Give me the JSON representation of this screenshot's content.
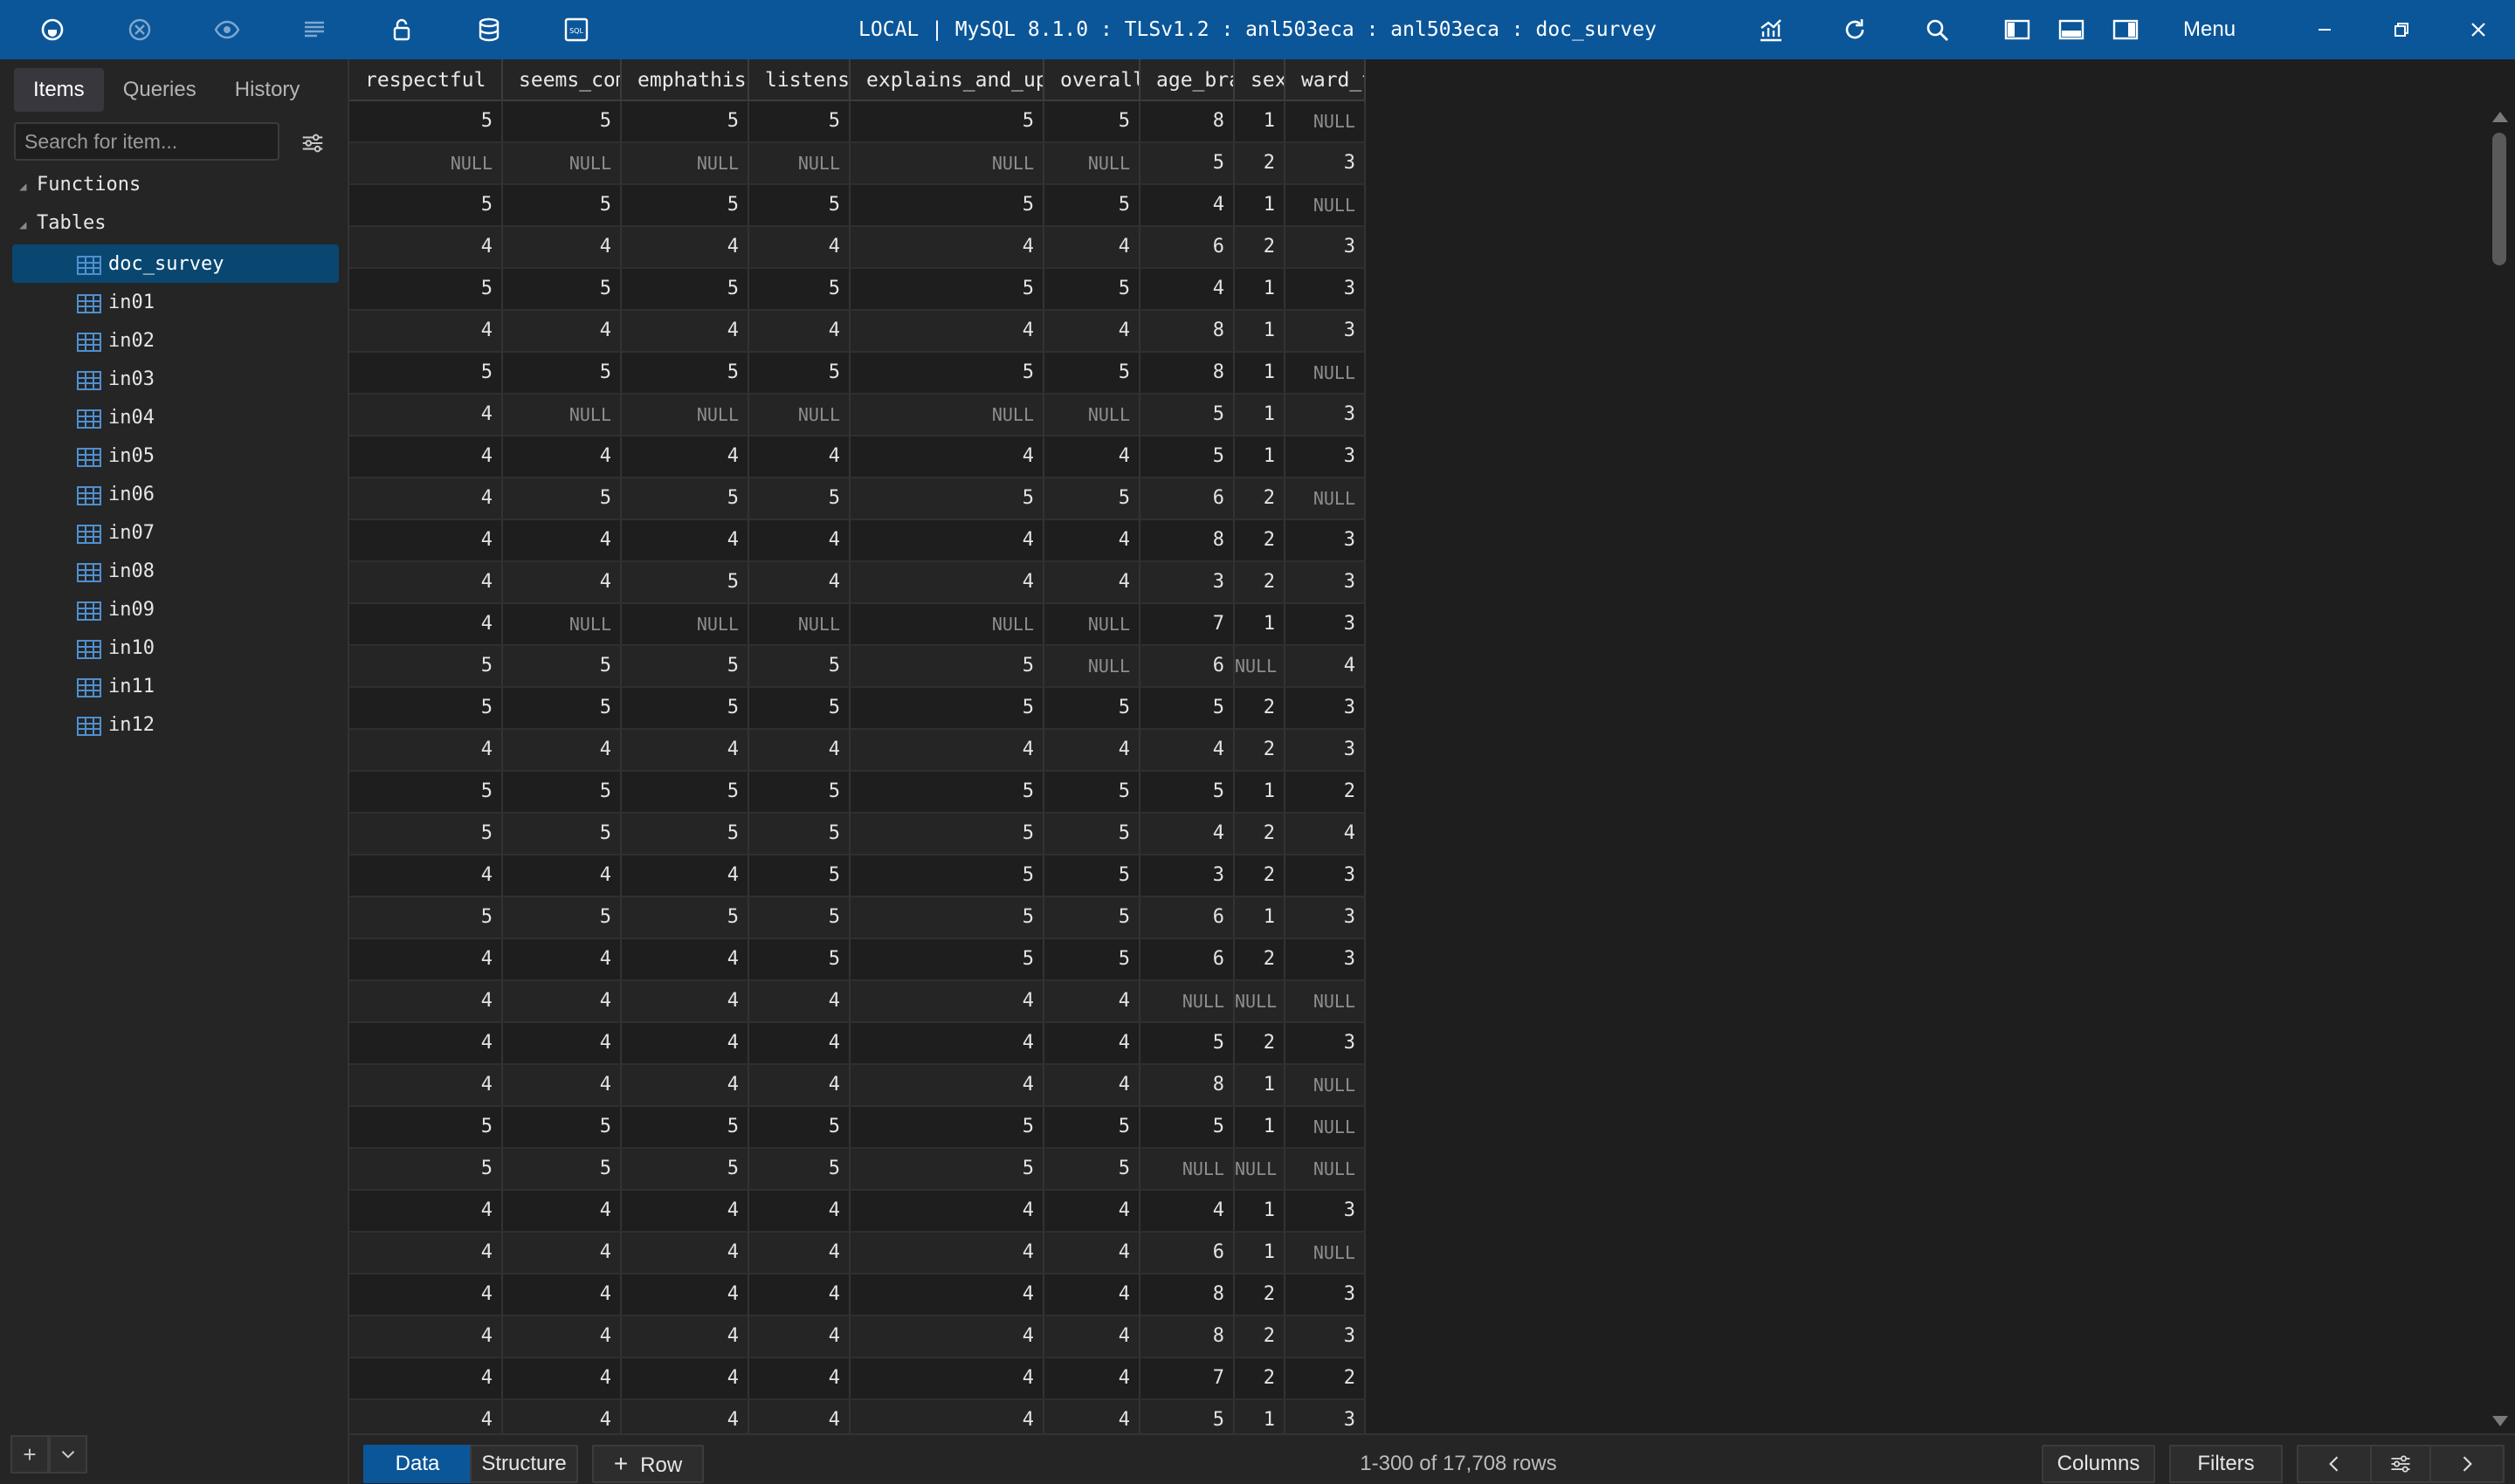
{
  "window": {
    "title": "LOCAL | MySQL 8.1.0 : TLSv1.2 : anl503eca : anl503eca : doc_survey",
    "menu_label": "Menu"
  },
  "toolbar": {
    "left_icons": [
      "connection-icon",
      "close-connection-icon",
      "preview-icon",
      "list-icon",
      "lock-icon",
      "database-icon",
      "sql-editor-icon"
    ],
    "right_icons": [
      "metrics-icon",
      "refresh-icon",
      "search-icon",
      "left-panel-icon",
      "bottom-panel-icon",
      "right-panel-icon"
    ],
    "window_controls": [
      "minimize-icon",
      "restore-icon",
      "close-icon"
    ]
  },
  "sidebar": {
    "tabs": [
      {
        "label": "Items",
        "active": true
      },
      {
        "label": "Queries",
        "active": false
      },
      {
        "label": "History",
        "active": false
      }
    ],
    "search_placeholder": "Search for item...",
    "groups": {
      "functions": "Functions",
      "tables": "Tables"
    },
    "tables": [
      "doc_survey",
      "in01",
      "in02",
      "in03",
      "in04",
      "in05",
      "in06",
      "in07",
      "in08",
      "in09",
      "in10",
      "in11",
      "in12"
    ],
    "selected_table": "doc_survey"
  },
  "grid": {
    "columns": [
      "respectful",
      "seems_competent",
      "emphathises_well",
      "listens_well",
      "explains_and_updates_well",
      "overall_sat",
      "age_bracket",
      "sex",
      "ward_type"
    ],
    "rows": [
      [
        "5",
        "5",
        "5",
        "5",
        "5",
        "5",
        "8",
        "1",
        "NULL"
      ],
      [
        "NULL",
        "NULL",
        "NULL",
        "NULL",
        "NULL",
        "NULL",
        "5",
        "2",
        "3"
      ],
      [
        "5",
        "5",
        "5",
        "5",
        "5",
        "5",
        "4",
        "1",
        "NULL"
      ],
      [
        "4",
        "4",
        "4",
        "4",
        "4",
        "4",
        "6",
        "2",
        "3"
      ],
      [
        "5",
        "5",
        "5",
        "5",
        "5",
        "5",
        "4",
        "1",
        "3"
      ],
      [
        "4",
        "4",
        "4",
        "4",
        "4",
        "4",
        "8",
        "1",
        "3"
      ],
      [
        "5",
        "5",
        "5",
        "5",
        "5",
        "5",
        "8",
        "1",
        "NULL"
      ],
      [
        "4",
        "NULL",
        "NULL",
        "NULL",
        "NULL",
        "NULL",
        "5",
        "1",
        "3"
      ],
      [
        "4",
        "4",
        "4",
        "4",
        "4",
        "4",
        "5",
        "1",
        "3"
      ],
      [
        "4",
        "5",
        "5",
        "5",
        "5",
        "5",
        "6",
        "2",
        "NULL"
      ],
      [
        "4",
        "4",
        "4",
        "4",
        "4",
        "4",
        "8",
        "2",
        "3"
      ],
      [
        "4",
        "4",
        "5",
        "4",
        "4",
        "4",
        "3",
        "2",
        "3"
      ],
      [
        "4",
        "NULL",
        "NULL",
        "NULL",
        "NULL",
        "NULL",
        "7",
        "1",
        "3"
      ],
      [
        "5",
        "5",
        "5",
        "5",
        "5",
        "NULL",
        "6",
        "NULL",
        "4"
      ],
      [
        "5",
        "5",
        "5",
        "5",
        "5",
        "5",
        "5",
        "2",
        "3"
      ],
      [
        "4",
        "4",
        "4",
        "4",
        "4",
        "4",
        "4",
        "2",
        "3"
      ],
      [
        "5",
        "5",
        "5",
        "5",
        "5",
        "5",
        "5",
        "1",
        "2"
      ],
      [
        "5",
        "5",
        "5",
        "5",
        "5",
        "5",
        "4",
        "2",
        "4"
      ],
      [
        "4",
        "4",
        "4",
        "5",
        "5",
        "5",
        "3",
        "2",
        "3"
      ],
      [
        "5",
        "5",
        "5",
        "5",
        "5",
        "5",
        "6",
        "1",
        "3"
      ],
      [
        "4",
        "4",
        "4",
        "5",
        "5",
        "5",
        "6",
        "2",
        "3"
      ],
      [
        "4",
        "4",
        "4",
        "4",
        "4",
        "4",
        "NULL",
        "NULL",
        "NULL"
      ],
      [
        "4",
        "4",
        "4",
        "4",
        "4",
        "4",
        "5",
        "2",
        "3"
      ],
      [
        "4",
        "4",
        "4",
        "4",
        "4",
        "4",
        "8",
        "1",
        "NULL"
      ],
      [
        "5",
        "5",
        "5",
        "5",
        "5",
        "5",
        "5",
        "1",
        "NULL"
      ],
      [
        "5",
        "5",
        "5",
        "5",
        "5",
        "5",
        "NULL",
        "NULL",
        "NULL"
      ],
      [
        "4",
        "4",
        "4",
        "4",
        "4",
        "4",
        "4",
        "1",
        "3"
      ],
      [
        "4",
        "4",
        "4",
        "4",
        "4",
        "4",
        "6",
        "1",
        "NULL"
      ],
      [
        "4",
        "4",
        "4",
        "4",
        "4",
        "4",
        "8",
        "2",
        "3"
      ],
      [
        "4",
        "4",
        "4",
        "4",
        "4",
        "4",
        "8",
        "2",
        "3"
      ],
      [
        "4",
        "4",
        "4",
        "4",
        "4",
        "4",
        "7",
        "2",
        "2"
      ],
      [
        "4",
        "4",
        "4",
        "4",
        "4",
        "4",
        "5",
        "1",
        "3"
      ]
    ]
  },
  "bottombar": {
    "data_tab": "Data",
    "structure_tab": "Structure",
    "add_row": "Row",
    "row_count": "1-300 of 17,708 rows",
    "columns_btn": "Columns",
    "filters_btn": "Filters"
  },
  "colors": {
    "accent": "#0b5699",
    "background": "#1e1e1e",
    "sidebar": "#252526",
    "selection": "#094771"
  }
}
